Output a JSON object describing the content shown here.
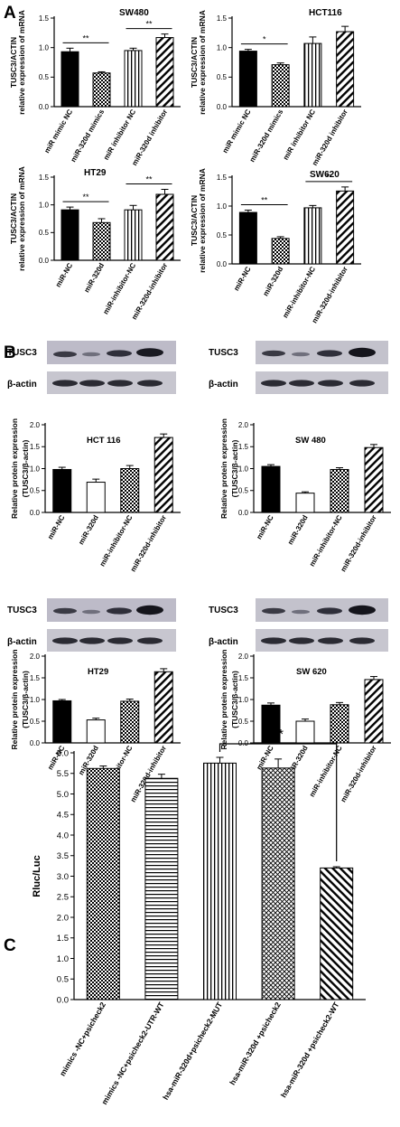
{
  "panels": {
    "A": "A",
    "B": "B",
    "C": "C"
  },
  "chart_data": [
    {
      "id": "A1",
      "type": "bar",
      "title": "SW480",
      "ylabel": [
        "TUSC3/ACTIN",
        "relative expression of mRNA"
      ],
      "ylim": [
        0,
        1.5
      ],
      "yticks": [
        "0.0",
        "0.5",
        "1.0",
        "1.5"
      ],
      "categories": [
        "miR mimic NC",
        "miR-320d mimics",
        "miR inhibitor NC",
        "miR-320d inhibitor"
      ],
      "values": [
        0.93,
        0.57,
        0.95,
        1.17
      ],
      "errors": [
        0.06,
        0.02,
        0.04,
        0.06
      ],
      "patterns": [
        "solid",
        "check",
        "vline",
        "diag"
      ],
      "significance": [
        {
          "from": 0,
          "to": 1,
          "label": "**"
        },
        {
          "from": 2,
          "to": 3,
          "label": "**"
        }
      ]
    },
    {
      "id": "A2",
      "type": "bar",
      "title": "HCT116",
      "ylabel": [
        "TUSC3/ACTIN",
        "relative expression of mRNA"
      ],
      "ylim": [
        0,
        1.5
      ],
      "yticks": [
        "0.0",
        "0.5",
        "1.0",
        "1.5"
      ],
      "categories": [
        "miR mimic NC",
        "miR-320d mimics",
        "miR inhibitor NC",
        "miR-320d inhibitor"
      ],
      "values": [
        0.94,
        0.71,
        1.07,
        1.27
      ],
      "errors": [
        0.03,
        0.03,
        0.11,
        0.09
      ],
      "patterns": [
        "solid",
        "check",
        "vline",
        "diag"
      ],
      "significance": [
        {
          "from": 0,
          "to": 1,
          "label": "*"
        }
      ]
    },
    {
      "id": "A3",
      "type": "bar",
      "title": "HT29",
      "ylabel": [
        "TUSC3/ACTIN",
        "relative expression of mRNA"
      ],
      "ylim": [
        0,
        1.5
      ],
      "yticks": [
        "0.0",
        "0.5",
        "1.0",
        "1.5"
      ],
      "categories": [
        "miR-NC",
        "miR-320d",
        "miR-inhibitor-NC",
        "miR-320d-inhibitor"
      ],
      "values": [
        0.91,
        0.68,
        0.91,
        1.19
      ],
      "errors": [
        0.05,
        0.07,
        0.08,
        0.09
      ],
      "patterns": [
        "solid",
        "check",
        "vline",
        "diag"
      ],
      "significance": [
        {
          "from": 0,
          "to": 1,
          "label": "**"
        },
        {
          "from": 2,
          "to": 3,
          "label": "**"
        }
      ]
    },
    {
      "id": "A4",
      "type": "bar",
      "title": "SW620",
      "ylabel": [
        "TUSC3/ACTIN",
        "relative expression of mRNA"
      ],
      "ylim": [
        0,
        1.5
      ],
      "yticks": [
        "0.0",
        "0.5",
        "1.0",
        "1.5"
      ],
      "categories": [
        "miR-NC",
        "miR-320d",
        "miR-inhibitor-NC",
        "miR-320d-inhibitor"
      ],
      "values": [
        0.89,
        0.44,
        0.97,
        1.26
      ],
      "errors": [
        0.04,
        0.03,
        0.04,
        0.07
      ],
      "patterns": [
        "solid",
        "check",
        "vline",
        "diag"
      ],
      "significance": [
        {
          "from": 0,
          "to": 1,
          "label": "**"
        },
        {
          "from": 2,
          "to": 3,
          "label": "**"
        }
      ]
    },
    {
      "id": "B1",
      "type": "bar",
      "title": "HCT 116",
      "blot_labels": [
        "TUSC3",
        "β-actin"
      ],
      "ylabel": [
        "Relative protein expression",
        "(TUSC3/β-actin)"
      ],
      "ylim": [
        0,
        2.0
      ],
      "yticks": [
        "0.0",
        "0.5",
        "1.0",
        "1.5",
        "2.0"
      ],
      "categories": [
        "miR-NC",
        "miR-320d",
        "miR-inhibitor-NC",
        "miR-320d-inhibitor"
      ],
      "values": [
        0.98,
        0.69,
        1.0,
        1.71
      ],
      "errors": [
        0.05,
        0.07,
        0.07,
        0.08
      ],
      "patterns": [
        "solid",
        "open",
        "check",
        "diag"
      ]
    },
    {
      "id": "B2",
      "type": "bar",
      "title": "SW 480",
      "blot_labels": [
        "TUSC3",
        "β-actin"
      ],
      "ylabel": [
        "Relative protein expression",
        "(TUSC3/β-actin)"
      ],
      "ylim": [
        0,
        2.0
      ],
      "yticks": [
        "0.0",
        "0.5",
        "1.0",
        "1.5",
        "2.0"
      ],
      "categories": [
        "miR-NC",
        "miR-320d",
        "miR-inhibitor-NC",
        "miR-320d-inhibitor"
      ],
      "values": [
        1.05,
        0.44,
        0.98,
        1.48
      ],
      "errors": [
        0.04,
        0.03,
        0.04,
        0.07
      ],
      "patterns": [
        "solid",
        "open",
        "check",
        "diag"
      ]
    },
    {
      "id": "B3",
      "type": "bar",
      "title": "HT29",
      "blot_labels": [
        "TUSC3",
        "β-actin"
      ],
      "ylabel": [
        "Relative protein expression",
        "(TUSC3/β-actin)"
      ],
      "ylim": [
        0,
        2.0
      ],
      "yticks": [
        "0.0",
        "0.5",
        "1.0",
        "1.5",
        "2.0"
      ],
      "categories": [
        "miR-NC",
        "miR-320d",
        "miR-inhibitor-NC",
        "miR-320d-inhibitor"
      ],
      "values": [
        0.97,
        0.53,
        0.96,
        1.64
      ],
      "errors": [
        0.03,
        0.04,
        0.05,
        0.07
      ],
      "patterns": [
        "solid",
        "open",
        "check",
        "diag"
      ]
    },
    {
      "id": "B4",
      "type": "bar",
      "title": "SW 620",
      "blot_labels": [
        "TUSC3",
        "β-actin"
      ],
      "ylabel": [
        "Relative protein expression",
        "(TUSC3/β-actin)"
      ],
      "ylim": [
        0,
        2.0
      ],
      "yticks": [
        "0.0",
        "0.5",
        "1.0",
        "1.5",
        "2.0"
      ],
      "categories": [
        "miR-NC",
        "miR-320d",
        "miR-inhibitor-NC",
        "miR-320d-inhibitor"
      ],
      "values": [
        0.87,
        0.5,
        0.88,
        1.46
      ],
      "errors": [
        0.05,
        0.05,
        0.05,
        0.07
      ],
      "patterns": [
        "solid",
        "open",
        "check",
        "diag"
      ]
    },
    {
      "id": "C",
      "type": "bar",
      "title": "",
      "ylabel": [
        "Rluc/Luc"
      ],
      "ylim": [
        0,
        6.0
      ],
      "yticks": [
        "0.0",
        "0.5",
        "1.0",
        "1.5",
        "2.0",
        "2.5",
        "3.0",
        "3.5",
        "4.0",
        "4.5",
        "5.0",
        "5.5",
        "6.0"
      ],
      "categories": [
        "mimics -NC+psicheck2",
        "mimics -NC+psicheck2-UTR-WT",
        "hsa-miR-320d+psicheck2-MUT",
        "hsa-miR-320d +psicheck2",
        "hsa-miR-320d +psicheck2-WT"
      ],
      "values": [
        5.62,
        5.38,
        5.75,
        5.63,
        3.2
      ],
      "errors": [
        0.06,
        0.1,
        0.14,
        0.22,
        0.03
      ],
      "patterns": [
        "check",
        "hline",
        "vline",
        "diamond",
        "diagR"
      ],
      "significance": [
        {
          "from": 2,
          "to": 4,
          "label": "**"
        }
      ]
    }
  ]
}
